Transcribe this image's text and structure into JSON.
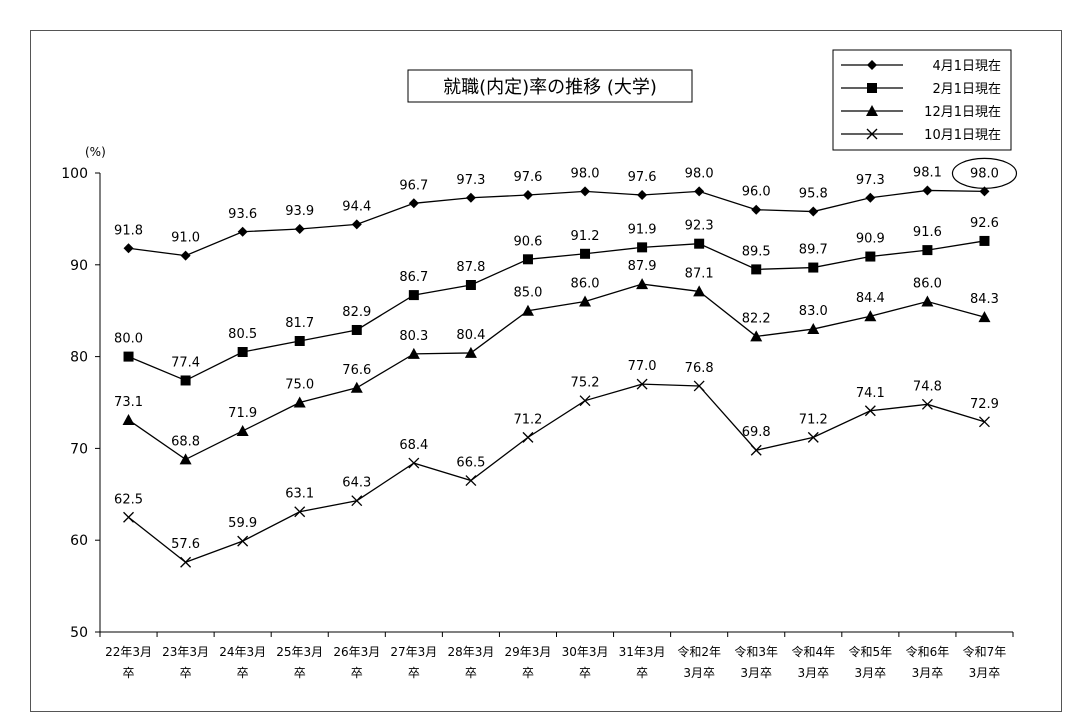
{
  "chart_data": {
    "type": "line",
    "title": "就職(内定)率の推移 (大学)",
    "ylabel": "(%)",
    "ylim": [
      50,
      100
    ],
    "yticks": [
      50,
      60,
      70,
      80,
      90,
      100
    ],
    "grid": false,
    "legend_position": "top-right",
    "categories": [
      [
        "22年3月",
        "卒"
      ],
      [
        "23年3月",
        "卒"
      ],
      [
        "24年3月",
        "卒"
      ],
      [
        "25年3月",
        "卒"
      ],
      [
        "26年3月",
        "卒"
      ],
      [
        "27年3月",
        "卒"
      ],
      [
        "28年3月",
        "卒"
      ],
      [
        "29年3月",
        "卒"
      ],
      [
        "30年3月",
        "卒"
      ],
      [
        "31年3月",
        "卒"
      ],
      [
        "令和2年",
        "3月卒"
      ],
      [
        "令和3年",
        "3月卒"
      ],
      [
        "令和4年",
        "3月卒"
      ],
      [
        "令和5年",
        "3月卒"
      ],
      [
        "令和6年",
        "3月卒"
      ],
      [
        "令和7年",
        "3月卒"
      ]
    ],
    "series": [
      {
        "name": "4月1日現在",
        "marker": "diamond",
        "values": [
          91.8,
          91.0,
          93.6,
          93.9,
          94.4,
          96.7,
          97.3,
          97.6,
          98.0,
          97.6,
          98.0,
          96.0,
          95.8,
          97.3,
          98.1,
          98.0
        ]
      },
      {
        "name": "2月1日現在",
        "marker": "square",
        "values": [
          80.0,
          77.4,
          80.5,
          81.7,
          82.9,
          86.7,
          87.8,
          90.6,
          91.2,
          91.9,
          92.3,
          89.5,
          89.7,
          90.9,
          91.6,
          92.6
        ]
      },
      {
        "name": "12月1日現在",
        "marker": "triangle",
        "values": [
          73.1,
          68.8,
          71.9,
          75.0,
          76.6,
          80.3,
          80.4,
          85.0,
          86.0,
          87.9,
          87.1,
          82.2,
          83.0,
          84.4,
          86.0,
          84.3
        ]
      },
      {
        "name": "10月1日現在",
        "marker": "x",
        "values": [
          62.5,
          57.6,
          59.9,
          63.1,
          64.3,
          68.4,
          66.5,
          71.2,
          75.2,
          77.0,
          76.8,
          69.8,
          71.2,
          74.1,
          74.8,
          72.9
        ]
      }
    ],
    "highlight": {
      "series": 0,
      "index": 15,
      "shape": "ellipse"
    }
  }
}
